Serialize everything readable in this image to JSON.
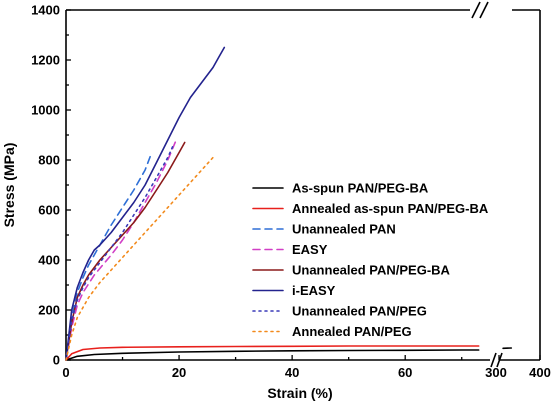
{
  "chart_data": {
    "type": "line",
    "title": "",
    "xlabel": "Strain (%)",
    "ylabel": "Stress (MPa)",
    "xlim_main": [
      0,
      75
    ],
    "xlim_broken": [
      300,
      400
    ],
    "ylim": [
      0,
      1400
    ],
    "x_ticks_main": [
      0,
      20,
      40,
      60
    ],
    "x_ticks_broken": [
      300,
      400
    ],
    "y_ticks": [
      0,
      200,
      400,
      600,
      800,
      1000,
      1200,
      1400
    ],
    "axis_break": "x",
    "grid": false,
    "legend_position": "center-right",
    "series": [
      {
        "name": "As-spun PAN/PEG-BA",
        "color": "#000000",
        "dash": "solid",
        "x": [
          0,
          2,
          5,
          10,
          20,
          30,
          40,
          50,
          60,
          70,
          73,
          310,
          330
        ],
        "y": [
          0,
          15,
          22,
          27,
          32,
          35,
          37,
          38,
          39,
          40,
          40,
          47,
          48
        ]
      },
      {
        "name": "Annealed as-spun PAN/PEG-BA",
        "color": "#e8201c",
        "dash": "solid",
        "x": [
          0,
          1,
          3,
          6,
          10,
          20,
          30,
          40,
          50,
          60,
          70,
          73
        ],
        "y": [
          0,
          25,
          42,
          48,
          51,
          53,
          54,
          55,
          56,
          56,
          56,
          56
        ]
      },
      {
        "name": "Unannealed PAN",
        "color": "#2e6fd6",
        "dash": "dashed",
        "x": [
          0,
          1,
          2,
          3,
          4,
          6,
          8,
          10,
          12,
          14,
          15
        ],
        "y": [
          0,
          170,
          270,
          330,
          380,
          460,
          540,
          610,
          680,
          760,
          820
        ]
      },
      {
        "name": "EASY",
        "color": "#d13fc6",
        "dash": "dashed",
        "x": [
          0,
          1,
          2,
          3,
          5,
          8,
          10,
          12,
          14,
          16,
          18,
          19.5
        ],
        "y": [
          0,
          130,
          220,
          270,
          340,
          420,
          480,
          550,
          630,
          710,
          800,
          880
        ]
      },
      {
        "name": "Unannealed PAN/PEG-BA",
        "color": "#8b1a1a",
        "dash": "solid",
        "x": [
          0,
          1,
          2,
          3,
          4,
          6,
          8,
          10,
          12,
          14,
          16,
          18,
          20,
          21
        ],
        "y": [
          0,
          150,
          250,
          300,
          340,
          400,
          450,
          500,
          550,
          610,
          680,
          750,
          830,
          870
        ]
      },
      {
        "name": "i-EASY",
        "color": "#23238e",
        "dash": "solid",
        "x": [
          0,
          1,
          2,
          3,
          4,
          5,
          6,
          8,
          10,
          12,
          14,
          16,
          18,
          20,
          22,
          24,
          26,
          27,
          28
        ],
        "y": [
          0,
          200,
          290,
          350,
          400,
          440,
          460,
          510,
          570,
          630,
          700,
          790,
          880,
          970,
          1050,
          1110,
          1170,
          1210,
          1250
        ]
      },
      {
        "name": "Unannealed PAN/PEG",
        "color": "#3a3ab8",
        "dash": "dotted",
        "x": [
          0,
          1,
          2,
          3,
          4,
          6,
          8,
          10,
          12,
          14,
          16,
          18,
          19
        ],
        "y": [
          0,
          160,
          240,
          290,
          330,
          390,
          450,
          510,
          580,
          650,
          730,
          810,
          860
        ]
      },
      {
        "name": "Annealed PAN/PEG",
        "color": "#f28a1c",
        "dash": "dotted",
        "x": [
          0,
          1,
          2,
          4,
          6,
          8,
          10,
          12,
          14,
          16,
          18,
          20,
          22,
          24,
          26
        ],
        "y": [
          0,
          100,
          170,
          250,
          310,
          360,
          410,
          460,
          510,
          560,
          610,
          660,
          710,
          760,
          810
        ]
      }
    ]
  }
}
